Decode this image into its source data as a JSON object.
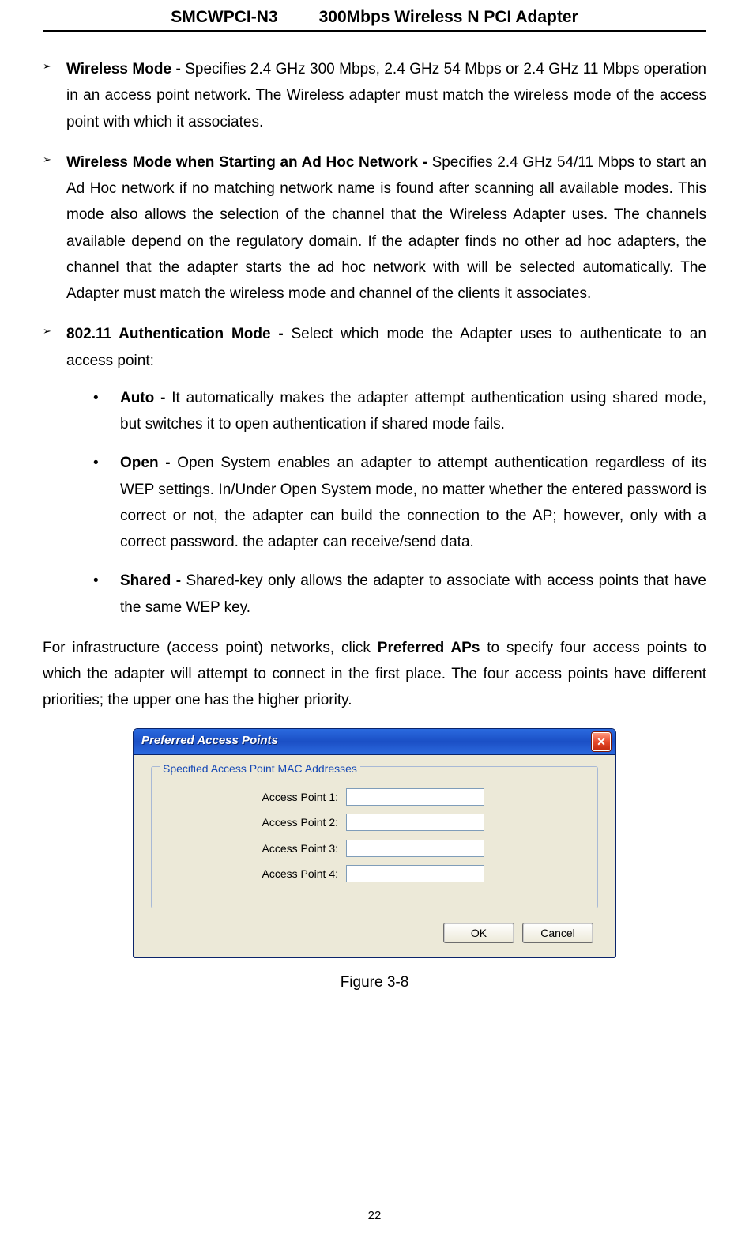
{
  "header": {
    "model": "SMCWPCI-N3",
    "product": "300Mbps Wireless N PCI Adapter"
  },
  "items": {
    "wireless_mode": {
      "label": "Wireless Mode - ",
      "text": "Specifies 2.4 GHz 300 Mbps, 2.4 GHz 54 Mbps or 2.4 GHz 11 Mbps operation in an access point network. The Wireless adapter must match the wireless mode of the access point with which it associates."
    },
    "adhoc": {
      "label": "Wireless Mode when Starting an Ad Hoc Network - ",
      "text": "Specifies 2.4 GHz 54/11 Mbps to start an Ad Hoc network if no matching network name is found after scanning all available modes. This mode also allows the selection of the channel that the Wireless Adapter uses. The channels available depend on the regulatory domain. If the adapter finds no other ad hoc adapters, the channel that the adapter starts the ad hoc network with will be selected automatically. The Adapter must match the wireless mode and channel of the clients it associates."
    },
    "auth": {
      "label": "802.11 Authentication Mode - ",
      "intro": "Select which mode the Adapter uses to authenticate to an access point:",
      "auto": {
        "label": "Auto - ",
        "text": "It automatically makes the adapter attempt authentication using shared mode, but switches it to open authentication if shared mode fails."
      },
      "open": {
        "label": "Open - ",
        "text": "Open System enables an adapter to attempt authentication regardless of its WEP settings. In/Under Open System mode, no matter whether the entered password is correct or not, the adapter can build the connection to the AP; however, only with a correct password. the adapter can receive/send data."
      },
      "shared": {
        "label": "Shared - ",
        "text": "Shared-key only allows the adapter to associate with access points that have the same WEP key."
      }
    }
  },
  "infra_para": {
    "pre": "For infrastructure (access point) networks, click ",
    "bold": "Preferred APs",
    "post": " to specify four access points to which the adapter will attempt to connect in the first place. The four access points have different priorities; the upper one has the higher priority."
  },
  "dialog": {
    "title": "Preferred Access Points",
    "group_title": "Specified Access Point MAC Addresses",
    "labels": {
      "ap1": "Access Point 1:",
      "ap2": "Access Point 2:",
      "ap3": "Access Point 3:",
      "ap4": "Access Point 4:"
    },
    "values": {
      "ap1": "",
      "ap2": "",
      "ap3": "",
      "ap4": ""
    },
    "buttons": {
      "ok": "OK",
      "cancel": "Cancel"
    },
    "close_glyph": "✕",
    "colors": {
      "titlebar_gradient_top": "#2b6adf",
      "titlebar_gradient_mid": "#1b4fc5",
      "body_bg": "#ece9d8",
      "group_border": "#a8b9d6",
      "group_title_color": "#1649b5",
      "input_border": "#7f9db9",
      "close_bg_top": "#ff9a80",
      "close_bg_bottom": "#c22a0e"
    }
  },
  "figure_caption": "Figure 3-8",
  "page_number": "22"
}
